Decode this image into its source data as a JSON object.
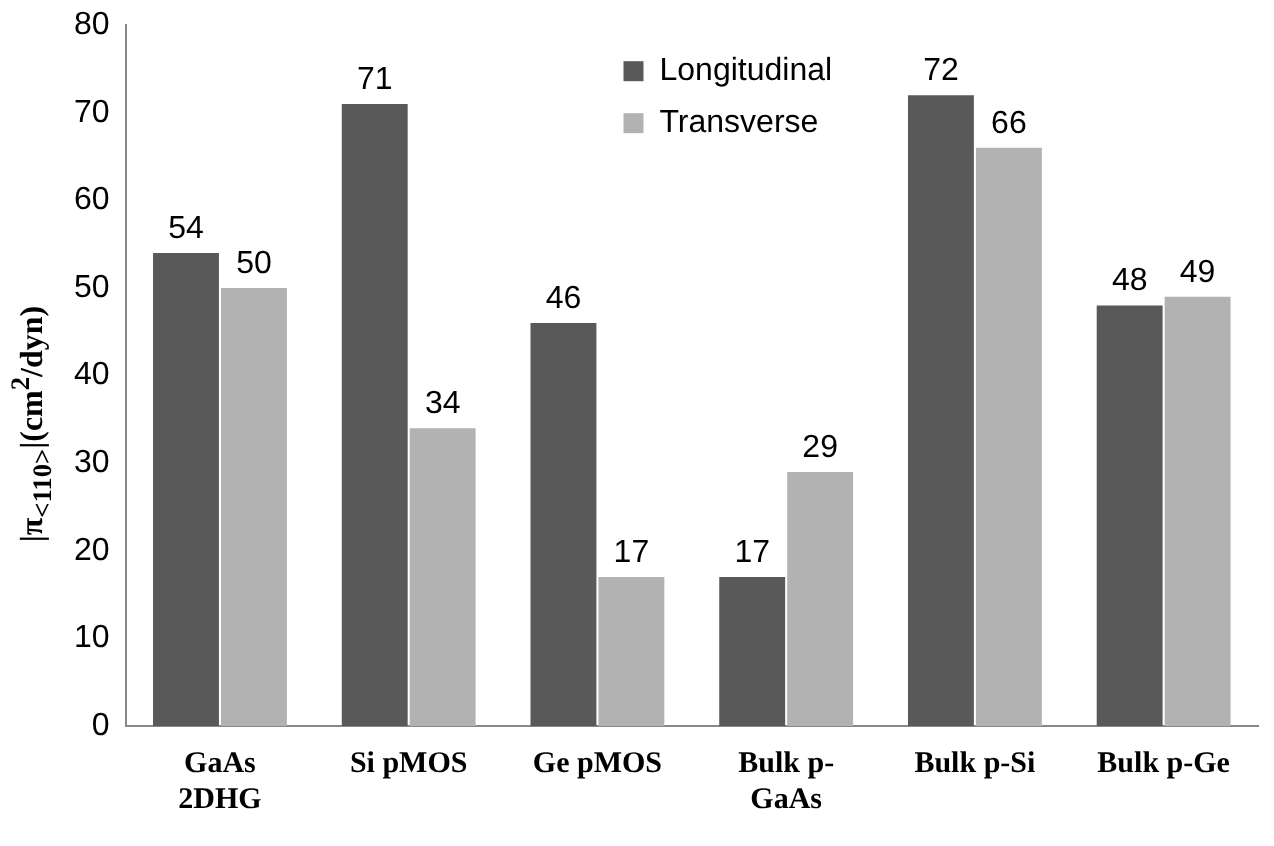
{
  "chart_data": {
    "type": "bar",
    "ylabel": "|π$_{<110>}$|(cm$^{2}$/dyn)",
    "categories": [
      "GaAs 2DHG",
      "Si pMOS",
      "Ge pMOS",
      "Bulk p-GaAs",
      "Bulk p-Si",
      "Bulk p-Ge"
    ],
    "series": [
      {
        "name": "Longitudinal",
        "color": "#595959",
        "values": [
          54,
          71,
          46,
          17,
          72,
          48
        ]
      },
      {
        "name": "Transverse",
        "color": "#b2b2b2",
        "values": [
          50,
          34,
          17,
          29,
          66,
          49
        ]
      }
    ],
    "ylim": [
      0,
      80
    ],
    "yticks": [
      0,
      10,
      20,
      30,
      40,
      50,
      60,
      70,
      80
    ],
    "grid": false,
    "legend": "top",
    "data_labels": true
  }
}
